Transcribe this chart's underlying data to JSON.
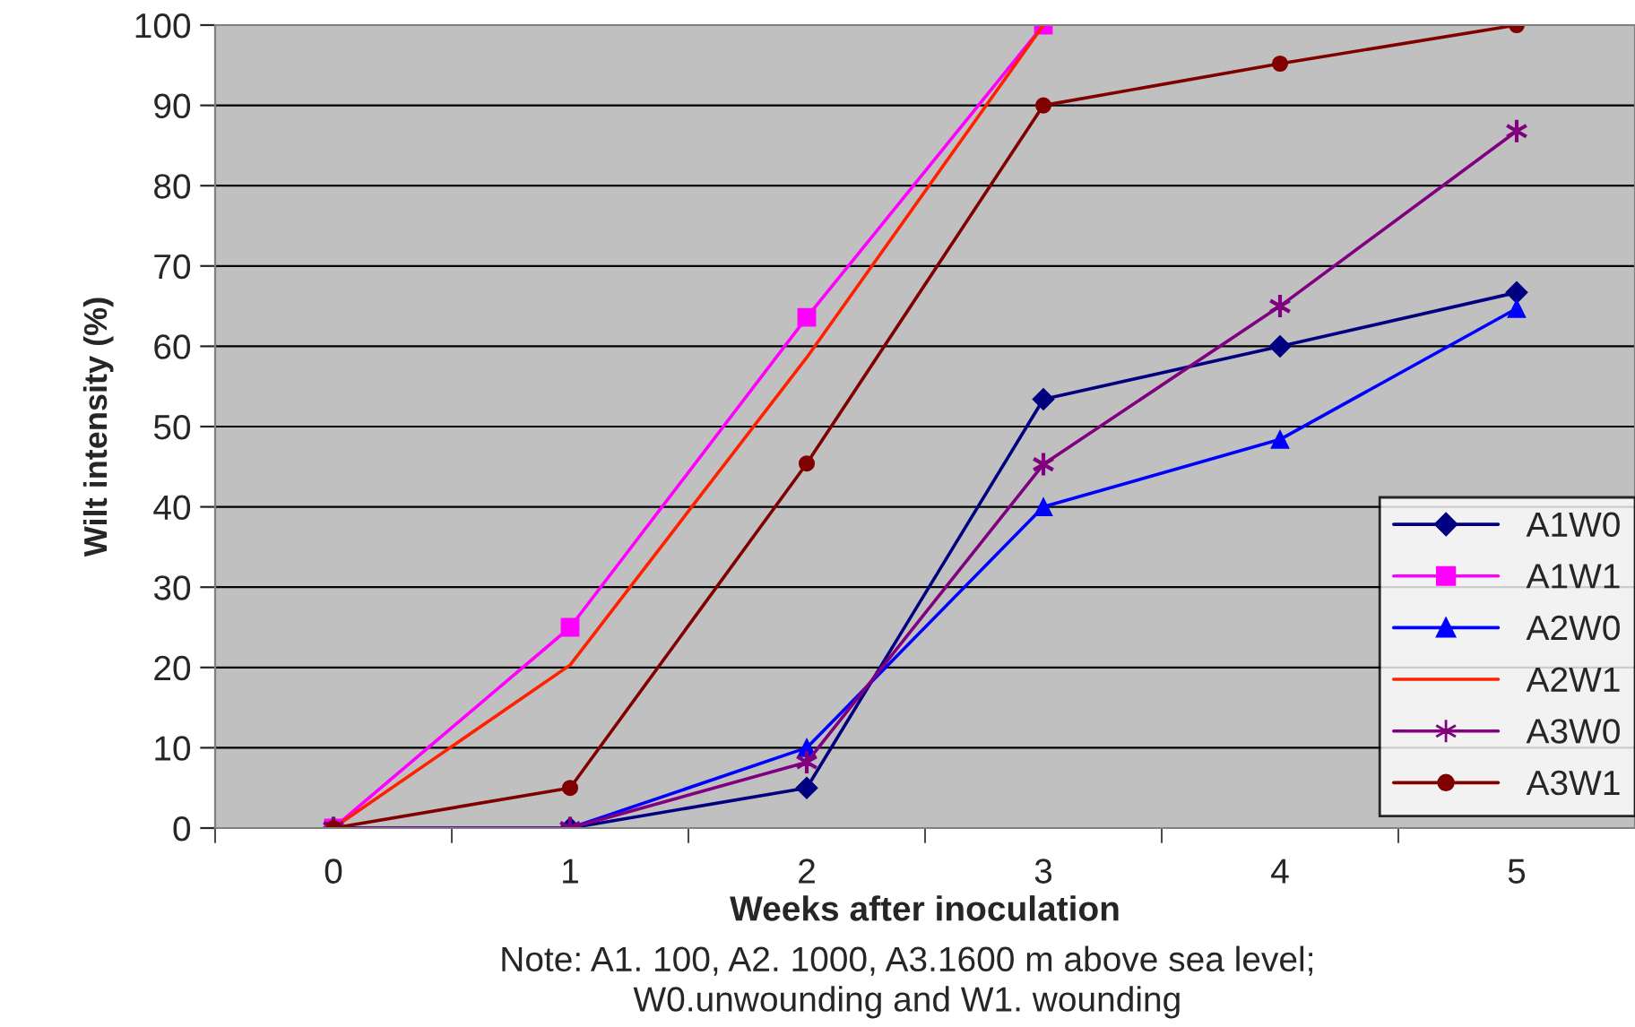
{
  "chart_data": {
    "type": "line",
    "xlabel": "Weeks after inoculation",
    "ylabel": "Wilt intensity (%)",
    "categories": [
      "0",
      "1",
      "2",
      "3",
      "4",
      "5"
    ],
    "ylim": [
      0,
      100
    ],
    "yticks": [
      0,
      10,
      20,
      30,
      40,
      50,
      60,
      70,
      80,
      90,
      100
    ],
    "grid": "y",
    "legend": "right",
    "annotations": [
      "Note: A1. 100, A2. 1000, A3.1600 m above sea level;\nW0.unwounding and W1. wounding"
    ],
    "series": [
      {
        "name": "A1W0",
        "color": "#000080",
        "marker": "diamond",
        "values": [
          0,
          0,
          5,
          53.4,
          60,
          66.7
        ]
      },
      {
        "name": "A1W1",
        "color": "#ff00ff",
        "marker": "square",
        "values": [
          0,
          25,
          63.6,
          100,
          null,
          null
        ]
      },
      {
        "name": "A2W0",
        "color": "#0000ff",
        "marker": "triangle",
        "values": [
          0,
          0,
          10,
          40,
          48.4,
          64.7
        ]
      },
      {
        "name": "A2W1",
        "color": "#ff2000",
        "marker": "none",
        "values": [
          0,
          20.3,
          58.6,
          100,
          null,
          null
        ]
      },
      {
        "name": "A3W0",
        "color": "#800080",
        "marker": "cross",
        "values": [
          0,
          0,
          8.2,
          45.3,
          65,
          86.8
        ]
      },
      {
        "name": "A3W1",
        "color": "#800000",
        "marker": "circle",
        "values": [
          0,
          5,
          45.4,
          90,
          95.2,
          100
        ]
      }
    ]
  }
}
